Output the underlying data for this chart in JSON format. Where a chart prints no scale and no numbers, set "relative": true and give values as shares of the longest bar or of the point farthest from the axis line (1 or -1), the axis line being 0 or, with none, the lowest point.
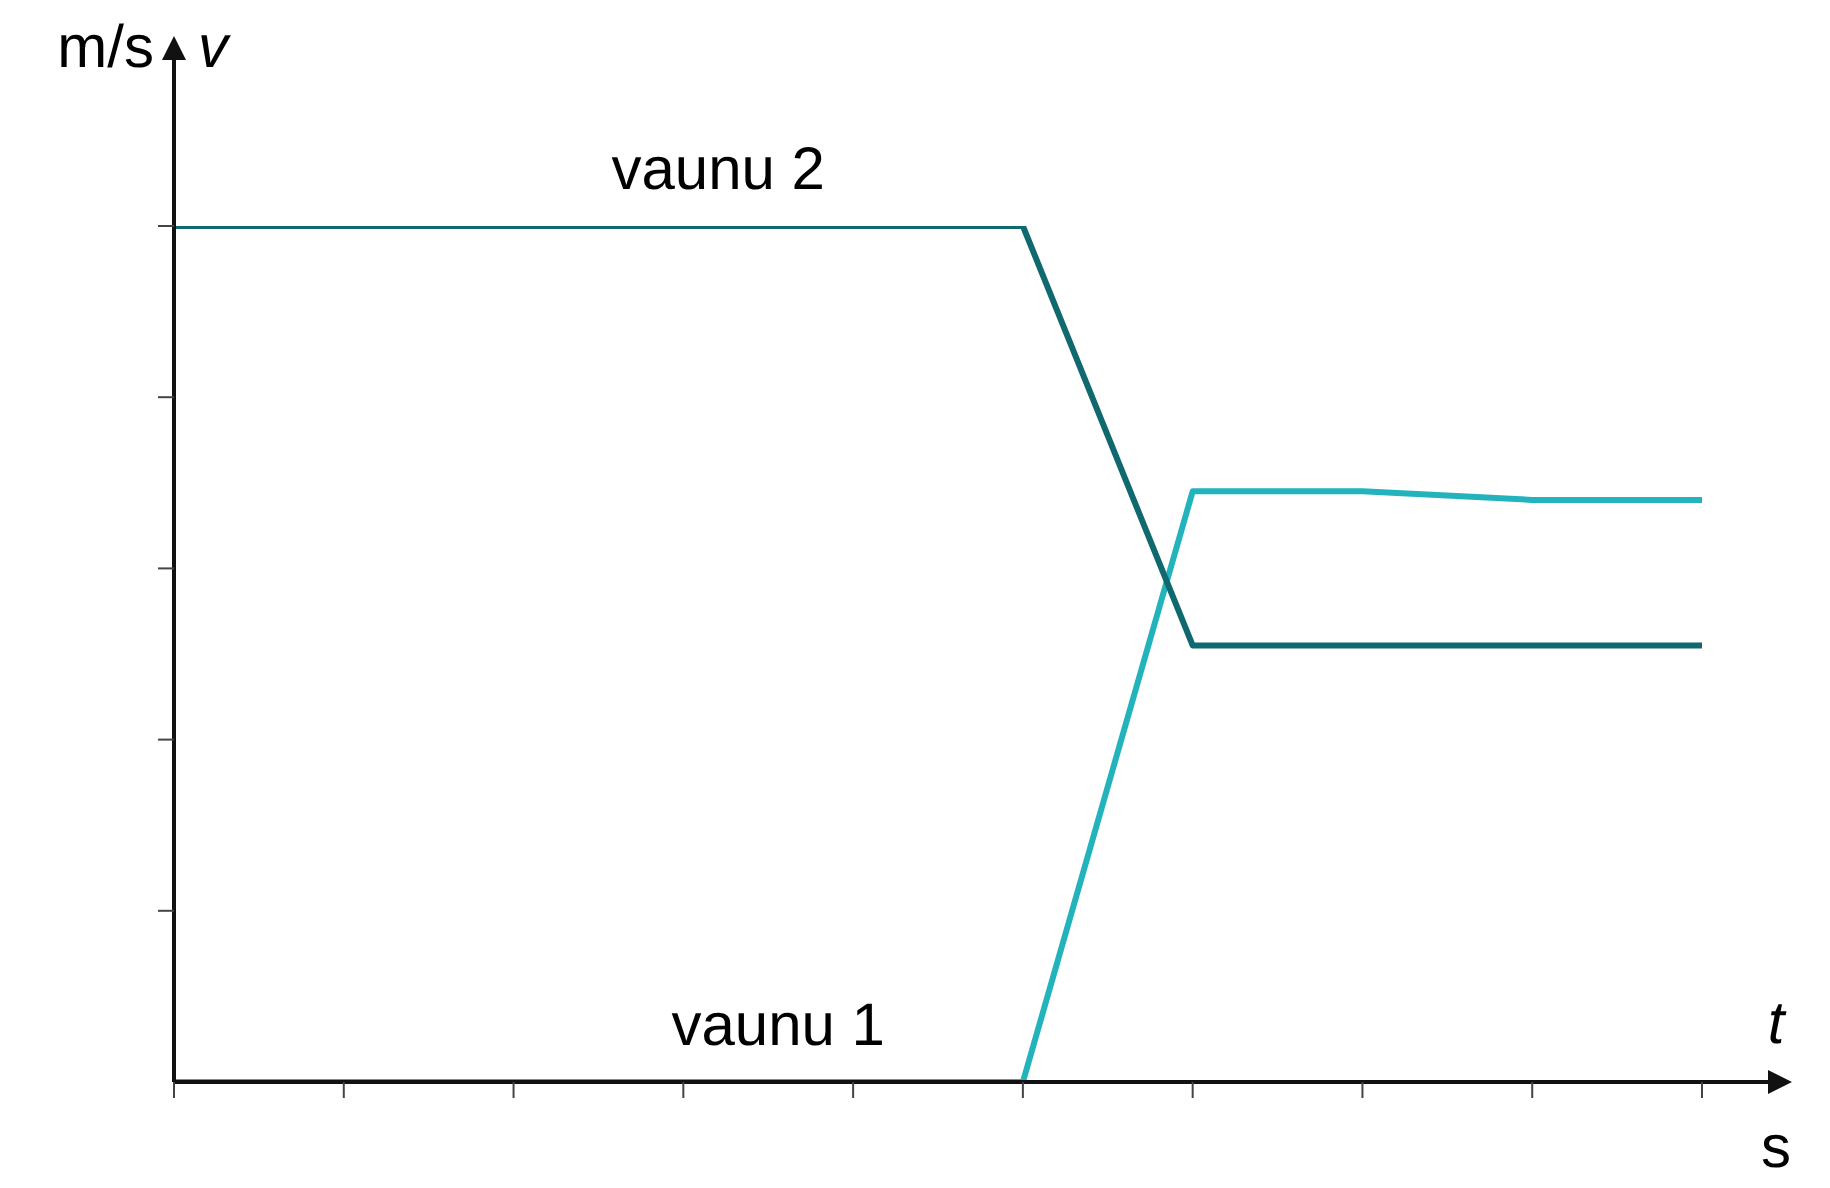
{
  "chart_data": {
    "type": "line",
    "relative": true,
    "xlabel": "t",
    "ylabel": "v",
    "annotations": [
      "m/s",
      "s"
    ],
    "legend": false,
    "marker": "none",
    "line_style": "solid",
    "categories": [
      null,
      null,
      null,
      null,
      null,
      null,
      null,
      null,
      null,
      null
    ],
    "series": [
      {
        "name": "vaunu 2",
        "color": "#10696f",
        "values": [
          1,
          1,
          1,
          1,
          1,
          1,
          0.51,
          0.51,
          0.51,
          0.51
        ]
      },
      {
        "name": "vaunu 1",
        "color": "#22b3bd",
        "values": [
          0,
          0,
          0,
          0,
          0,
          0,
          0.69,
          0.69,
          0.68,
          0.68
        ]
      }
    ]
  }
}
